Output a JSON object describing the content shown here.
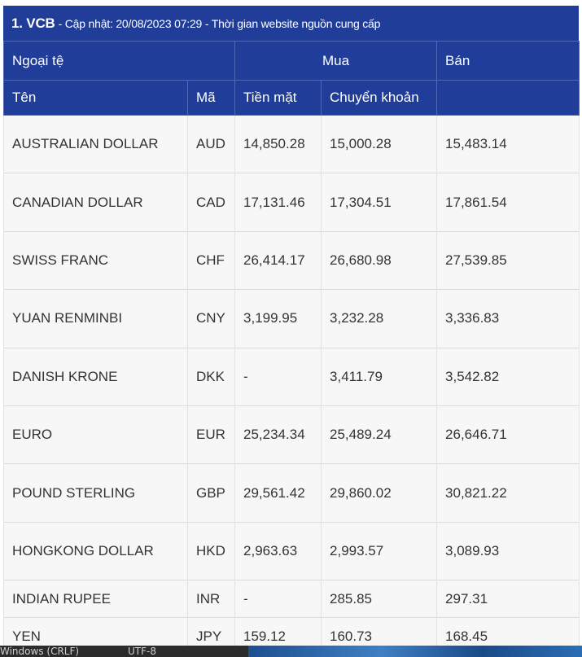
{
  "caption": {
    "bank": "1. VCB",
    "note": " - Cập nhật: 20/08/2023 07:29 - Thời gian website nguồn cung cấp"
  },
  "headers": {
    "currency_group": "Ngoại tệ",
    "buy_group": "Mua",
    "sell": "Bán",
    "name": "Tên",
    "code": "Mã",
    "cash": "Tiền mặt",
    "transfer": "Chuyển khoản"
  },
  "rows": [
    {
      "name": "AUSTRALIAN DOLLAR",
      "code": "AUD",
      "cash": "14,850.28",
      "transfer": "15,000.28",
      "sell": "15,483.14"
    },
    {
      "name": "CANADIAN DOLLAR",
      "code": "CAD",
      "cash": "17,131.46",
      "transfer": "17,304.51",
      "sell": "17,861.54"
    },
    {
      "name": "SWISS FRANC",
      "code": "CHF",
      "cash": "26,414.17",
      "transfer": "26,680.98",
      "sell": "27,539.85"
    },
    {
      "name": "YUAN RENMINBI",
      "code": "CNY",
      "cash": "3,199.95",
      "transfer": "3,232.28",
      "sell": "3,336.83"
    },
    {
      "name": "DANISH KRONE",
      "code": "DKK",
      "cash": "-",
      "transfer": "3,411.79",
      "sell": "3,542.82"
    },
    {
      "name": "EURO",
      "code": "EUR",
      "cash": "25,234.34",
      "transfer": "25,489.24",
      "sell": "26,646.71"
    },
    {
      "name": "POUND STERLING",
      "code": "GBP",
      "cash": "29,561.42",
      "transfer": "29,860.02",
      "sell": "30,821.22"
    },
    {
      "name": "HONGKONG DOLLAR",
      "code": "HKD",
      "cash": "2,963.63",
      "transfer": "2,993.57",
      "sell": "3,089.93"
    },
    {
      "name": "INDIAN RUPEE",
      "code": "INR",
      "cash": "-",
      "transfer": "285.85",
      "sell": "297.31"
    },
    {
      "name": "YEN",
      "code": "JPY",
      "cash": "159.12",
      "transfer": "160.73",
      "sell": "168.45"
    }
  ],
  "taskbar": {
    "line_ending": "Windows (CRLF)",
    "encoding": "UTF-8"
  }
}
